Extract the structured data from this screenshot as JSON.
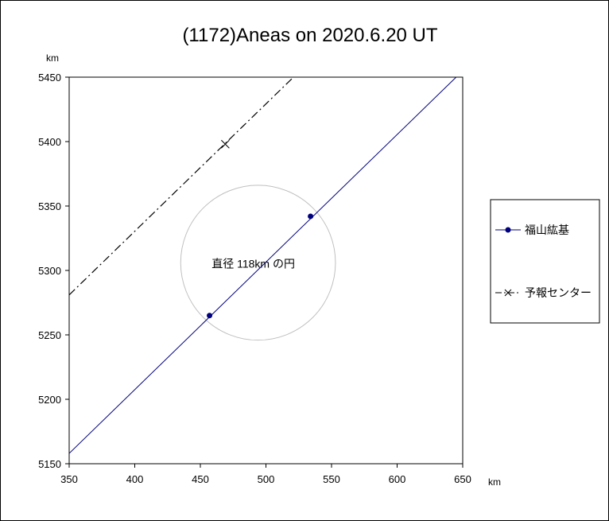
{
  "chart_data": {
    "type": "scatter",
    "title": "(1172)Aneas on 2020.6.20 UT",
    "xlabel": "km",
    "ylabel": "km",
    "xlim": [
      350,
      650
    ],
    "ylim": [
      5150,
      5450
    ],
    "x_ticks": [
      "350",
      "400",
      "450",
      "500",
      "550",
      "600",
      "650"
    ],
    "y_ticks": [
      "5150",
      "5200",
      "5250",
      "5300",
      "5350",
      "5400",
      "5450"
    ],
    "grid": false,
    "legend_position": "right",
    "series": [
      {
        "name": "福山紘基",
        "style": "solid line with dot markers",
        "color": "#00007f",
        "line": [
          [
            350,
            5158
          ],
          [
            645,
            5450
          ]
        ],
        "points": [
          [
            457,
            5265
          ],
          [
            534,
            5342
          ]
        ]
      },
      {
        "name": "予報センター",
        "style": "dash-dot line with x marker",
        "color": "#000000",
        "line": [
          [
            350,
            5281
          ],
          [
            521,
            5450
          ]
        ],
        "points": [
          [
            469,
            5398
          ]
        ]
      }
    ],
    "circle": {
      "label": "直径 118km の円",
      "center": [
        494,
        5306
      ],
      "diameter_km": 118,
      "color": "#c0c0c0"
    }
  }
}
